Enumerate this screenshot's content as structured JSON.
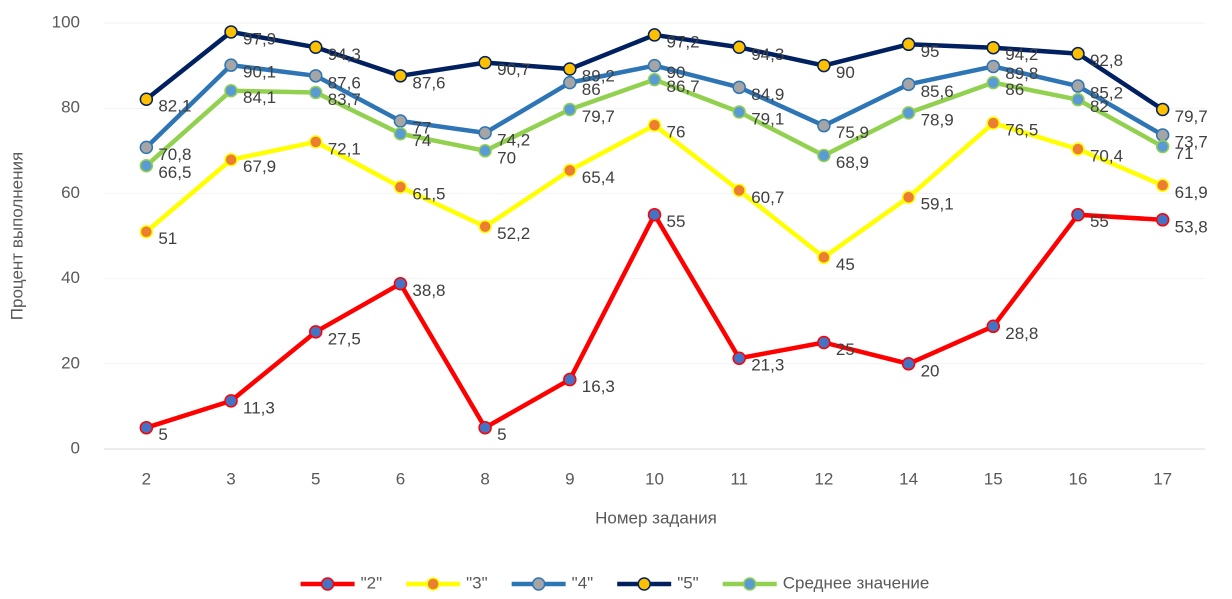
{
  "chart_data": {
    "type": "line",
    "x_label": "Номер задания",
    "y_label": "Процент выполнения",
    "categories": [
      "2",
      "3",
      "5",
      "6",
      "8",
      "9",
      "10",
      "11",
      "12",
      "14",
      "15",
      "16",
      "17"
    ],
    "ylim": [
      0,
      100
    ],
    "yticks": [
      0,
      20,
      40,
      60,
      80,
      100
    ],
    "grid": true,
    "legend": "bottom",
    "series": [
      {
        "name": "\"2\"",
        "color": "#ff0000",
        "marker_color": "#4472c4",
        "values": [
          5,
          11.3,
          27.5,
          38.8,
          5,
          16.3,
          55,
          21.3,
          25,
          20,
          28.8,
          55,
          53.8
        ],
        "value_labels": [
          "5",
          "11,3",
          "27,5",
          "38,8",
          "5",
          "16,3",
          "55",
          "21,3",
          "25",
          "20",
          "28,8",
          "55",
          "53,8"
        ]
      },
      {
        "name": "\"3\"",
        "color": "#ffff00",
        "marker_color": "#ed7d31",
        "values": [
          51,
          67.9,
          72.1,
          61.5,
          52.2,
          65.4,
          76,
          60.7,
          45,
          59.1,
          76.5,
          70.4,
          61.9
        ],
        "value_labels": [
          "51",
          "67,9",
          "72,1",
          "61,5",
          "52,2",
          "65,4",
          "76",
          "60,7",
          "45",
          "59,1",
          "76,5",
          "70,4",
          "61,9"
        ]
      },
      {
        "name": "\"4\"",
        "color": "#2e75b6",
        "marker_color": "#a5a5a5",
        "values": [
          70.8,
          90.1,
          87.6,
          77,
          74.2,
          86,
          90,
          84.9,
          75.9,
          85.6,
          89.8,
          85.2,
          73.7
        ],
        "value_labels": [
          "70,8",
          "90,1",
          "87,6",
          "77",
          "74,2",
          "86",
          "90",
          "84,9",
          "75,9",
          "85,6",
          "89,8",
          "85,2",
          "73,7"
        ]
      },
      {
        "name": "\"5\"",
        "color": "#002060",
        "marker_color": "#ffc000",
        "values": [
          82.1,
          97.9,
          94.3,
          87.6,
          90.7,
          89.2,
          97.2,
          94.3,
          90,
          95,
          94.2,
          92.8,
          79.7
        ],
        "value_labels": [
          "82,1",
          "97,9",
          "94,3",
          "87,6",
          "90,7",
          "89,2",
          "97,2",
          "94,3",
          "90",
          "95",
          "94,2",
          "92,8",
          "79,7"
        ]
      },
      {
        "name": "Среднее значение",
        "color": "#92d050",
        "marker_color": "#5b9bd5",
        "values": [
          66.5,
          84.1,
          83.7,
          74,
          70,
          79.7,
          86.7,
          79.1,
          68.9,
          78.9,
          86,
          82,
          71
        ],
        "value_labels": [
          "66,5",
          "84,1",
          "83,7",
          "74",
          "70",
          "79,7",
          "86,7",
          "79,1",
          "68,9",
          "78,9",
          "86",
          "82",
          "71"
        ]
      }
    ]
  }
}
